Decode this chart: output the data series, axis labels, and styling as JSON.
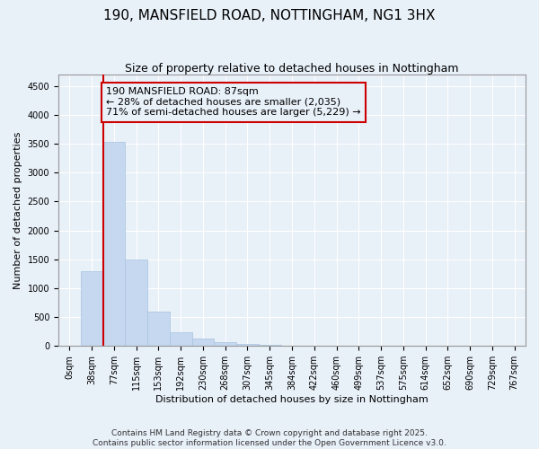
{
  "title_line1": "190, MANSFIELD ROAD, NOTTINGHAM, NG1 3HX",
  "title_line2": "Size of property relative to detached houses in Nottingham",
  "xlabel": "Distribution of detached houses by size in Nottingham",
  "ylabel": "Number of detached properties",
  "bin_labels": [
    "0sqm",
    "38sqm",
    "77sqm",
    "115sqm",
    "153sqm",
    "192sqm",
    "230sqm",
    "268sqm",
    "307sqm",
    "345sqm",
    "384sqm",
    "422sqm",
    "460sqm",
    "499sqm",
    "537sqm",
    "575sqm",
    "614sqm",
    "652sqm",
    "690sqm",
    "729sqm",
    "767sqm"
  ],
  "bar_values": [
    0,
    1300,
    3530,
    1500,
    590,
    240,
    130,
    65,
    35,
    15,
    5,
    2,
    1,
    0,
    0,
    0,
    0,
    0,
    0,
    0,
    0
  ],
  "bar_color": "#c5d8f0",
  "bar_edge_color": "#a8c4e0",
  "background_color": "#e8f0f8",
  "property_label": "190 MANSFIELD ROAD: 87sqm",
  "annotation_line2": "← 28% of detached houses are smaller (2,035)",
  "annotation_line3": "71% of semi-detached houses are larger (5,229) →",
  "vline_x": 1.5,
  "vline_color": "#cc0000",
  "annotation_box_color": "#cc0000",
  "ylim": [
    0,
    4700
  ],
  "yticks": [
    0,
    500,
    1000,
    1500,
    2000,
    2500,
    3000,
    3500,
    4000,
    4500
  ],
  "footer_line1": "Contains HM Land Registry data © Crown copyright and database right 2025.",
  "footer_line2": "Contains public sector information licensed under the Open Government Licence v3.0.",
  "grid_color": "#ffffff",
  "title1_fontsize": 11,
  "title2_fontsize": 9,
  "ann_fontsize": 8,
  "axis_fontsize": 8,
  "tick_fontsize": 7,
  "footer_fontsize": 6.5
}
